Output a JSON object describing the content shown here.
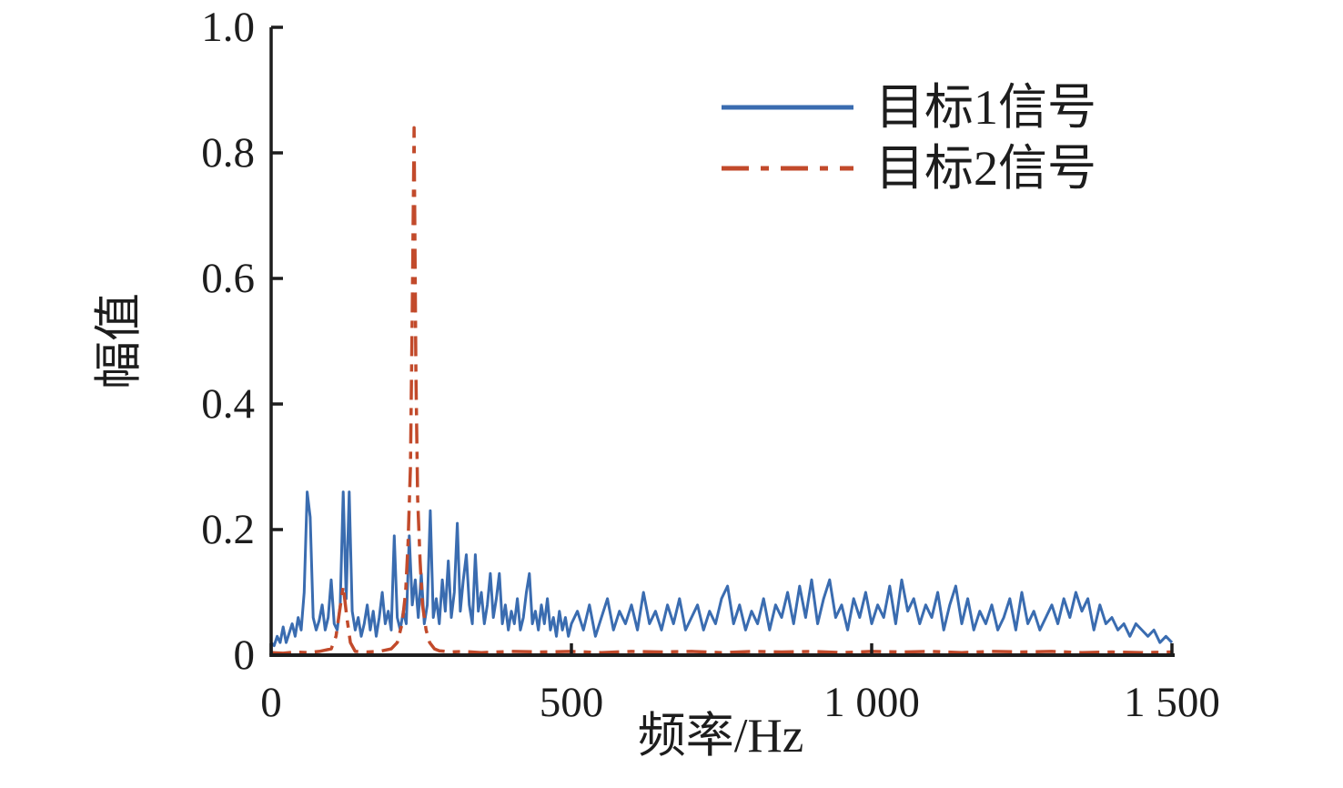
{
  "figure": {
    "background": "#ffffff",
    "axis_color": "#1d1d1d"
  },
  "chart_data": {
    "type": "line",
    "title": "",
    "xlabel": "频率/Hz",
    "ylabel": "幅值",
    "xlim": [
      0,
      1500
    ],
    "ylim": [
      0,
      1.0
    ],
    "grid": false,
    "legend_position": "upper right",
    "legend_border": false,
    "xticks": {
      "values": [
        0,
        500,
        1000,
        1500
      ],
      "labels": [
        "0",
        "500",
        "1 000",
        "1 500"
      ]
    },
    "yticks": {
      "values": [
        0,
        0.2,
        0.4,
        0.6,
        0.8,
        1.0
      ],
      "labels": [
        "0",
        "0.2",
        "0.4",
        "0.6",
        "0.8",
        "1.0"
      ]
    },
    "series": [
      {
        "name": "目标1信号",
        "color": "#3A6CB0",
        "style": "solid",
        "dash": "",
        "legend_dash": "",
        "width": 3,
        "points": [
          [
            0,
            0.02
          ],
          [
            5,
            0.015
          ],
          [
            10,
            0.03
          ],
          [
            15,
            0.02
          ],
          [
            20,
            0.045
          ],
          [
            25,
            0.02
          ],
          [
            30,
            0.035
          ],
          [
            35,
            0.05
          ],
          [
            40,
            0.03
          ],
          [
            45,
            0.06
          ],
          [
            50,
            0.04
          ],
          [
            55,
            0.1
          ],
          [
            60,
            0.26
          ],
          [
            65,
            0.22
          ],
          [
            70,
            0.06
          ],
          [
            75,
            0.04
          ],
          [
            80,
            0.055
          ],
          [
            85,
            0.08
          ],
          [
            90,
            0.04
          ],
          [
            95,
            0.06
          ],
          [
            100,
            0.12
          ],
          [
            105,
            0.05
          ],
          [
            110,
            0.04
          ],
          [
            115,
            0.08
          ],
          [
            120,
            0.26
          ],
          [
            125,
            0.09
          ],
          [
            130,
            0.26
          ],
          [
            135,
            0.07
          ],
          [
            140,
            0.04
          ],
          [
            145,
            0.06
          ],
          [
            150,
            0.03
          ],
          [
            155,
            0.05
          ],
          [
            160,
            0.08
          ],
          [
            165,
            0.04
          ],
          [
            170,
            0.07
          ],
          [
            175,
            0.03
          ],
          [
            180,
            0.06
          ],
          [
            185,
            0.1
          ],
          [
            190,
            0.05
          ],
          [
            195,
            0.07
          ],
          [
            200,
            0.04
          ],
          [
            205,
            0.19
          ],
          [
            210,
            0.06
          ],
          [
            215,
            0.04
          ],
          [
            220,
            0.07
          ],
          [
            225,
            0.05
          ],
          [
            230,
            0.19
          ],
          [
            235,
            0.08
          ],
          [
            240,
            0.12
          ],
          [
            245,
            0.06
          ],
          [
            250,
            0.13
          ],
          [
            255,
            0.05
          ],
          [
            260,
            0.08
          ],
          [
            265,
            0.23
          ],
          [
            270,
            0.06
          ],
          [
            275,
            0.09
          ],
          [
            280,
            0.05
          ],
          [
            285,
            0.12
          ],
          [
            290,
            0.07
          ],
          [
            295,
            0.15
          ],
          [
            300,
            0.06
          ],
          [
            305,
            0.1
          ],
          [
            310,
            0.21
          ],
          [
            315,
            0.07
          ],
          [
            320,
            0.12
          ],
          [
            325,
            0.16
          ],
          [
            330,
            0.08
          ],
          [
            335,
            0.05
          ],
          [
            340,
            0.16
          ],
          [
            345,
            0.07
          ],
          [
            350,
            0.1
          ],
          [
            355,
            0.05
          ],
          [
            360,
            0.08
          ],
          [
            365,
            0.13
          ],
          [
            370,
            0.06
          ],
          [
            375,
            0.09
          ],
          [
            380,
            0.13
          ],
          [
            385,
            0.05
          ],
          [
            390,
            0.08
          ],
          [
            395,
            0.04
          ],
          [
            400,
            0.07
          ],
          [
            405,
            0.05
          ],
          [
            410,
            0.09
          ],
          [
            415,
            0.04
          ],
          [
            420,
            0.06
          ],
          [
            425,
            0.1
          ],
          [
            430,
            0.13
          ],
          [
            435,
            0.05
          ],
          [
            440,
            0.07
          ],
          [
            445,
            0.04
          ],
          [
            450,
            0.08
          ],
          [
            455,
            0.05
          ],
          [
            460,
            0.09
          ],
          [
            465,
            0.04
          ],
          [
            470,
            0.06
          ],
          [
            475,
            0.03
          ],
          [
            480,
            0.07
          ],
          [
            485,
            0.04
          ],
          [
            490,
            0.06
          ],
          [
            495,
            0.03
          ],
          [
            500,
            0.05
          ],
          [
            510,
            0.07
          ],
          [
            520,
            0.04
          ],
          [
            530,
            0.08
          ],
          [
            540,
            0.03
          ],
          [
            550,
            0.06
          ],
          [
            560,
            0.09
          ],
          [
            570,
            0.04
          ],
          [
            580,
            0.07
          ],
          [
            590,
            0.05
          ],
          [
            600,
            0.08
          ],
          [
            610,
            0.04
          ],
          [
            620,
            0.1
          ],
          [
            630,
            0.05
          ],
          [
            640,
            0.07
          ],
          [
            650,
            0.04
          ],
          [
            660,
            0.08
          ],
          [
            670,
            0.05
          ],
          [
            680,
            0.09
          ],
          [
            690,
            0.04
          ],
          [
            700,
            0.06
          ],
          [
            710,
            0.08
          ],
          [
            720,
            0.04
          ],
          [
            730,
            0.07
          ],
          [
            740,
            0.05
          ],
          [
            750,
            0.09
          ],
          [
            760,
            0.11
          ],
          [
            770,
            0.05
          ],
          [
            780,
            0.08
          ],
          [
            790,
            0.04
          ],
          [
            800,
            0.07
          ],
          [
            810,
            0.05
          ],
          [
            820,
            0.09
          ],
          [
            830,
            0.04
          ],
          [
            840,
            0.08
          ],
          [
            850,
            0.06
          ],
          [
            860,
            0.1
          ],
          [
            870,
            0.05
          ],
          [
            880,
            0.11
          ],
          [
            890,
            0.06
          ],
          [
            900,
            0.12
          ],
          [
            910,
            0.05
          ],
          [
            920,
            0.09
          ],
          [
            930,
            0.12
          ],
          [
            940,
            0.06
          ],
          [
            950,
            0.08
          ],
          [
            960,
            0.04
          ],
          [
            970,
            0.09
          ],
          [
            980,
            0.06
          ],
          [
            990,
            0.1
          ],
          [
            1000,
            0.05
          ],
          [
            1010,
            0.08
          ],
          [
            1020,
            0.06
          ],
          [
            1030,
            0.11
          ],
          [
            1040,
            0.05
          ],
          [
            1050,
            0.12
          ],
          [
            1060,
            0.07
          ],
          [
            1070,
            0.09
          ],
          [
            1080,
            0.05
          ],
          [
            1090,
            0.08
          ],
          [
            1100,
            0.06
          ],
          [
            1110,
            0.1
          ],
          [
            1120,
            0.04
          ],
          [
            1130,
            0.08
          ],
          [
            1140,
            0.11
          ],
          [
            1150,
            0.05
          ],
          [
            1160,
            0.09
          ],
          [
            1170,
            0.04
          ],
          [
            1180,
            0.07
          ],
          [
            1190,
            0.05
          ],
          [
            1200,
            0.08
          ],
          [
            1210,
            0.04
          ],
          [
            1220,
            0.06
          ],
          [
            1230,
            0.09
          ],
          [
            1240,
            0.04
          ],
          [
            1250,
            0.1
          ],
          [
            1260,
            0.05
          ],
          [
            1270,
            0.07
          ],
          [
            1280,
            0.04
          ],
          [
            1290,
            0.06
          ],
          [
            1300,
            0.08
          ],
          [
            1310,
            0.05
          ],
          [
            1320,
            0.09
          ],
          [
            1330,
            0.06
          ],
          [
            1340,
            0.1
          ],
          [
            1350,
            0.07
          ],
          [
            1360,
            0.09
          ],
          [
            1370,
            0.04
          ],
          [
            1380,
            0.08
          ],
          [
            1390,
            0.05
          ],
          [
            1400,
            0.06
          ],
          [
            1410,
            0.04
          ],
          [
            1420,
            0.05
          ],
          [
            1430,
            0.03
          ],
          [
            1440,
            0.05
          ],
          [
            1450,
            0.04
          ],
          [
            1460,
            0.03
          ],
          [
            1470,
            0.04
          ],
          [
            1480,
            0.02
          ],
          [
            1490,
            0.03
          ],
          [
            1500,
            0.02
          ]
        ]
      },
      {
        "name": "目标2信号",
        "color": "#C24A2B",
        "style": "dash-dot",
        "dash": "22 9 8 9",
        "legend_dash": "30 13 9 13",
        "width": 3.5,
        "points": [
          [
            0,
            0.004
          ],
          [
            20,
            0.003
          ],
          [
            40,
            0.005
          ],
          [
            60,
            0.004
          ],
          [
            80,
            0.006
          ],
          [
            100,
            0.01
          ],
          [
            108,
            0.03
          ],
          [
            114,
            0.07
          ],
          [
            120,
            0.11
          ],
          [
            126,
            0.06
          ],
          [
            132,
            0.02
          ],
          [
            140,
            0.006
          ],
          [
            160,
            0.005
          ],
          [
            180,
            0.006
          ],
          [
            200,
            0.01
          ],
          [
            210,
            0.02
          ],
          [
            218,
            0.05
          ],
          [
            224,
            0.1
          ],
          [
            228,
            0.18
          ],
          [
            232,
            0.3
          ],
          [
            235,
            0.55
          ],
          [
            238,
            0.84
          ],
          [
            241,
            0.45
          ],
          [
            244,
            0.25
          ],
          [
            248,
            0.15
          ],
          [
            252,
            0.08
          ],
          [
            258,
            0.04
          ],
          [
            264,
            0.02
          ],
          [
            272,
            0.01
          ],
          [
            280,
            0.007
          ],
          [
            300,
            0.005
          ],
          [
            320,
            0.006
          ],
          [
            350,
            0.004
          ],
          [
            400,
            0.006
          ],
          [
            450,
            0.005
          ],
          [
            500,
            0.006
          ],
          [
            550,
            0.004
          ],
          [
            600,
            0.006
          ],
          [
            650,
            0.005
          ],
          [
            700,
            0.006
          ],
          [
            750,
            0.004
          ],
          [
            800,
            0.006
          ],
          [
            850,
            0.005
          ],
          [
            900,
            0.006
          ],
          [
            950,
            0.004
          ],
          [
            1000,
            0.006
          ],
          [
            1050,
            0.005
          ],
          [
            1100,
            0.006
          ],
          [
            1150,
            0.004
          ],
          [
            1200,
            0.006
          ],
          [
            1250,
            0.005
          ],
          [
            1300,
            0.006
          ],
          [
            1350,
            0.004
          ],
          [
            1400,
            0.005
          ],
          [
            1450,
            0.004
          ],
          [
            1500,
            0.005
          ]
        ]
      }
    ]
  }
}
